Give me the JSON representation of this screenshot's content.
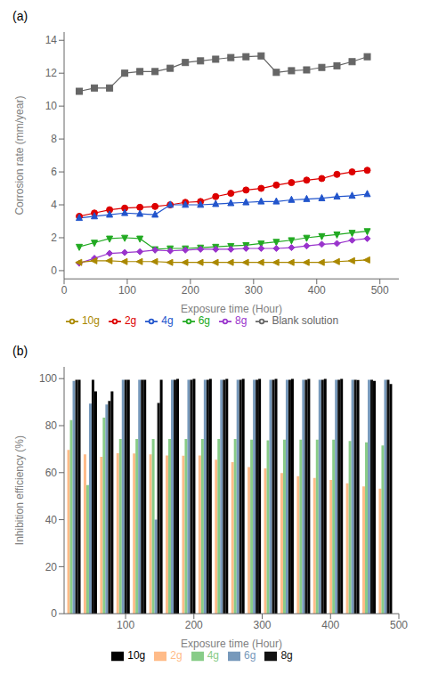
{
  "chart_data": [
    {
      "type": "line",
      "title": "(a)",
      "x_label": "Exposure time (Hour)",
      "y_label": "Corrosion rate (mm/year)",
      "x": [
        24,
        48,
        72,
        96,
        120,
        144,
        168,
        192,
        216,
        240,
        264,
        288,
        312,
        336,
        360,
        384,
        408,
        432,
        456,
        480
      ],
      "series": [
        {
          "name": "Blank solution",
          "color": "#666666",
          "marker": "square",
          "values": [
            10.9,
            11.1,
            11.1,
            12.0,
            12.1,
            12.1,
            12.3,
            12.65,
            12.75,
            12.85,
            12.95,
            13.0,
            13.05,
            12.05,
            12.15,
            12.2,
            12.35,
            12.45,
            12.7,
            13.0
          ]
        },
        {
          "name": "2g",
          "color": "#dd0000",
          "marker": "circle",
          "values": [
            3.3,
            3.5,
            3.7,
            3.8,
            3.85,
            3.9,
            4.0,
            4.15,
            4.2,
            4.5,
            4.7,
            4.9,
            5.0,
            5.2,
            5.35,
            5.5,
            5.6,
            5.85,
            6.0,
            6.1
          ]
        },
        {
          "name": "4g",
          "color": "#2255cc",
          "marker": "triangle-up",
          "values": [
            3.2,
            3.3,
            3.4,
            3.5,
            3.45,
            3.4,
            4.0,
            4.0,
            4.0,
            4.05,
            4.1,
            4.15,
            4.2,
            4.2,
            4.3,
            4.35,
            4.4,
            4.5,
            4.55,
            4.65
          ]
        },
        {
          "name": "6g",
          "color": "#22aa22",
          "marker": "triangle-down",
          "values": [
            1.45,
            1.7,
            1.95,
            2.0,
            1.95,
            1.3,
            1.35,
            1.35,
            1.4,
            1.45,
            1.5,
            1.55,
            1.65,
            1.75,
            1.85,
            2.0,
            2.1,
            2.2,
            2.3,
            2.4
          ]
        },
        {
          "name": "8g",
          "color": "#9933cc",
          "marker": "diamond",
          "values": [
            0.45,
            0.75,
            1.05,
            1.1,
            1.15,
            1.25,
            1.2,
            1.25,
            1.3,
            1.3,
            1.3,
            1.35,
            1.35,
            1.35,
            1.4,
            1.5,
            1.6,
            1.65,
            1.85,
            1.95
          ]
        },
        {
          "name": "10g",
          "color": "#aa8800",
          "marker": "triangle-left",
          "values": [
            0.5,
            0.6,
            0.6,
            0.55,
            0.55,
            0.55,
            0.5,
            0.5,
            0.5,
            0.5,
            0.5,
            0.5,
            0.5,
            0.5,
            0.5,
            0.5,
            0.5,
            0.55,
            0.6,
            0.65
          ]
        }
      ],
      "xlim": [
        0,
        530
      ],
      "ylim": [
        -0.5,
        14.5
      ],
      "xticks": [
        0,
        100,
        200,
        300,
        400,
        500
      ],
      "yticks": [
        0,
        2,
        4,
        6,
        8,
        10,
        12,
        14
      ],
      "grid": false,
      "legend": "bottom"
    },
    {
      "type": "bar",
      "title": "(b)",
      "x_label": "Exposure time (Hour)",
      "y_label": "Inhibition efficiency (%)",
      "x": [
        24,
        48,
        72,
        96,
        120,
        144,
        168,
        192,
        216,
        240,
        264,
        288,
        312,
        336,
        360,
        384,
        408,
        432,
        456,
        480
      ],
      "series": [
        {
          "name": "2g",
          "color": "#ffbb88",
          "values": [
            69.7,
            67.8,
            66.7,
            68.3,
            68.2,
            67.8,
            67.3,
            67.2,
            67.3,
            65.5,
            64.5,
            62.4,
            61.8,
            59.8,
            58.5,
            57.7,
            56.9,
            55.5,
            54.1,
            53.2
          ]
        },
        {
          "name": "4g",
          "color": "#88cc88",
          "values": [
            82.4,
            54.7,
            83.4,
            74.3,
            74.3,
            74.3,
            74.3,
            74.3,
            74.3,
            74.3,
            74.3,
            74.0,
            73.7,
            74.0,
            74.0,
            74.0,
            74.0,
            73.5,
            72.9,
            71.6
          ]
        },
        {
          "name": "6g",
          "color": "#7799bb",
          "values": [
            99.0,
            89.4,
            89.0,
            99.5,
            99.5,
            40.0,
            99.5,
            99.5,
            99.5,
            99.5,
            99.5,
            99.5,
            99.5,
            99.5,
            99.5,
            99.5,
            99.5,
            99.5,
            99.5,
            99.5
          ]
        },
        {
          "name": "8g",
          "color": "#111111",
          "values": [
            99.5,
            99.5,
            90.5,
            99.5,
            99.5,
            89.7,
            99.5,
            99.5,
            99.5,
            99.5,
            99.5,
            99.5,
            99.5,
            99.5,
            99.5,
            99.5,
            99.5,
            99.5,
            99.5,
            99.5
          ]
        },
        {
          "name": "10g",
          "color": "#000000",
          "values": [
            99.5,
            94.6,
            94.6,
            99.5,
            99.5,
            99.5,
            99.9,
            99.9,
            99.9,
            99.9,
            99.9,
            99.9,
            99.9,
            99.9,
            99.9,
            99.9,
            99.9,
            99.4,
            99.0,
            97.7
          ]
        }
      ],
      "xlim": [
        10,
        500
      ],
      "ylim": [
        0,
        105
      ],
      "xticks": [
        100,
        200,
        300,
        400,
        500
      ],
      "yticks": [
        0,
        20,
        40,
        60,
        80,
        100
      ],
      "grid": false,
      "legend": "bottom"
    }
  ]
}
